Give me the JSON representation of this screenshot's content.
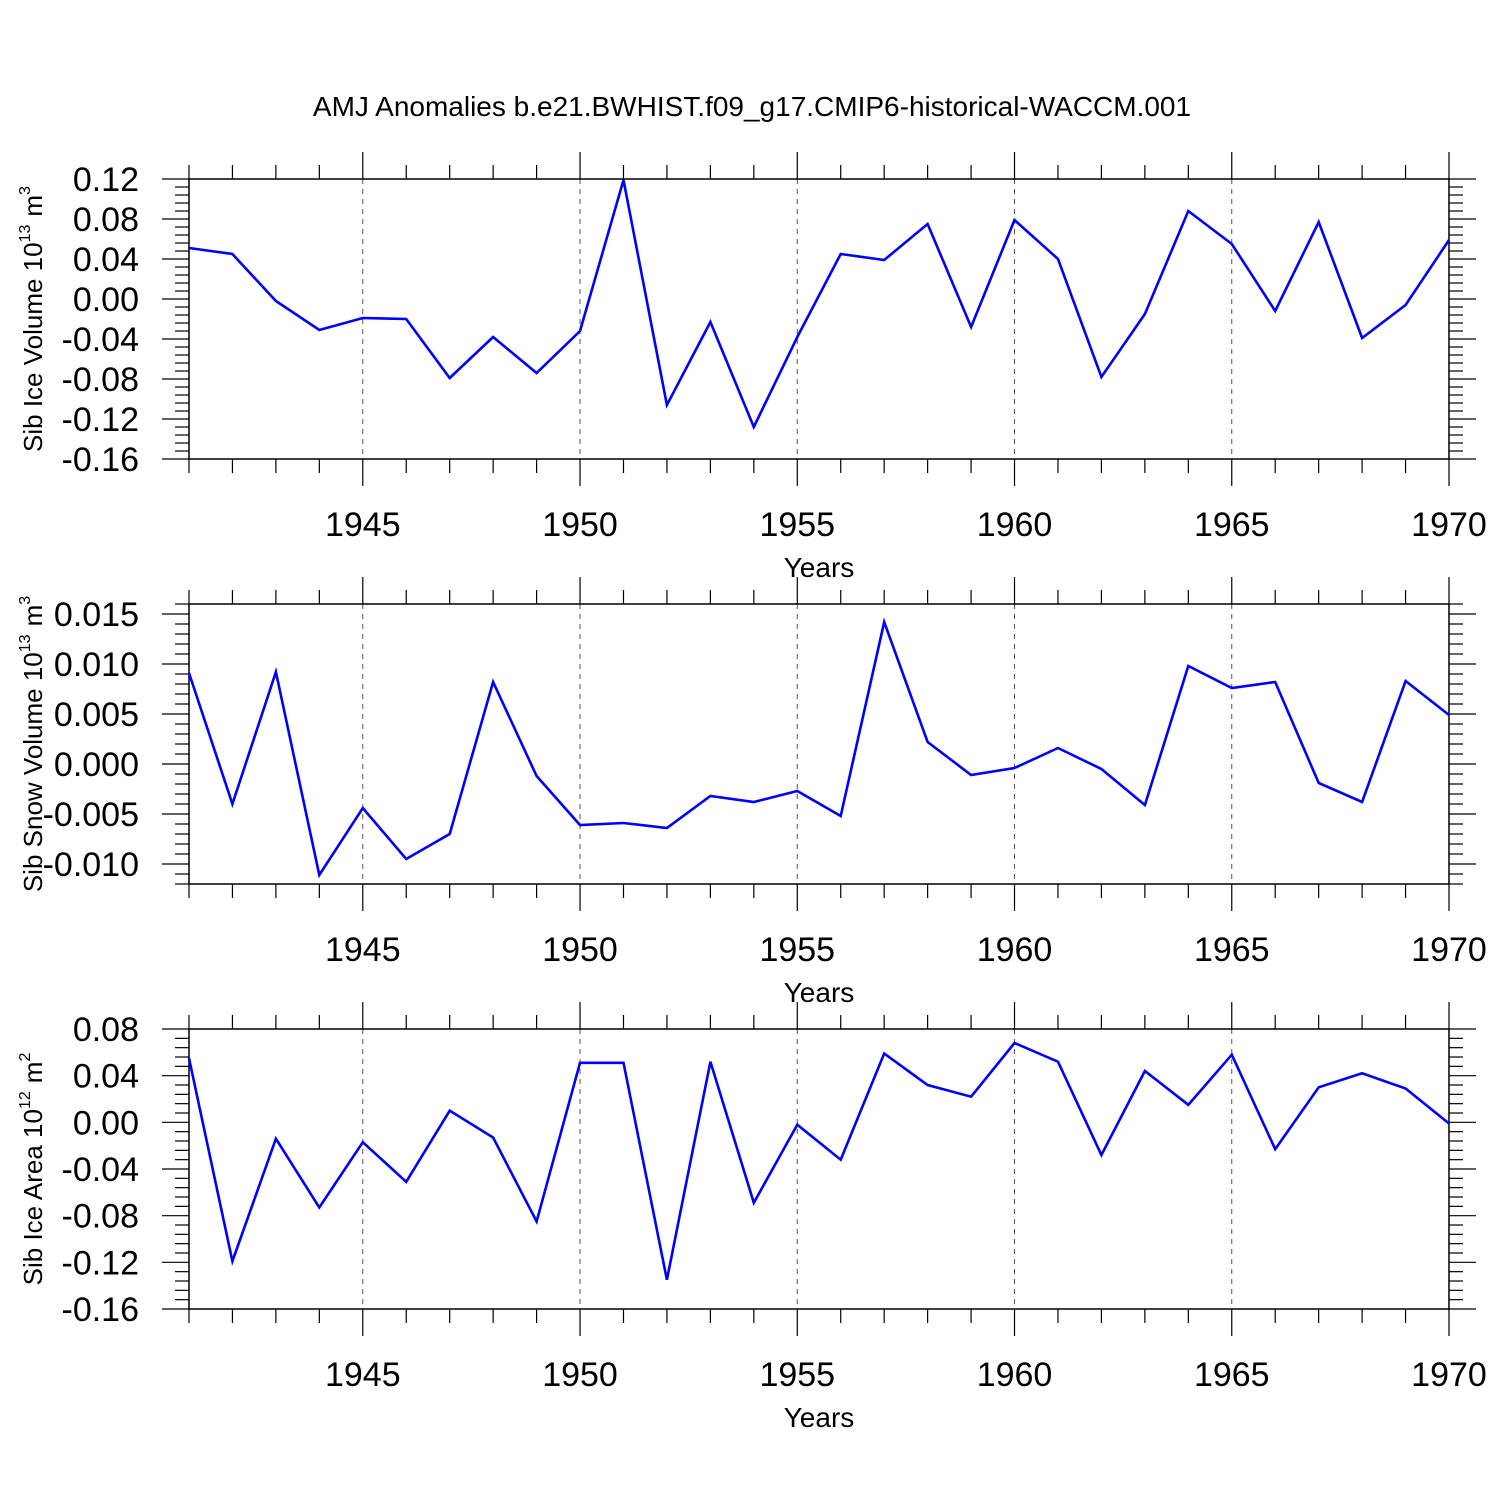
{
  "title": "AMJ Anomalies b.e21.BWHIST.f09_g17.CMIP6-historical-WACCM.001",
  "colors": {
    "line": "#0000ff",
    "axis": "#000000",
    "grid": "#555555"
  },
  "chart_data": [
    {
      "type": "line",
      "name": "sib-ice-volume",
      "xlabel": "Years",
      "ylabel": {
        "text": "Sib Ice Volume 10",
        "exponent": "13",
        "unit": "m",
        "unit_exponent": "3"
      },
      "xlim": [
        1941,
        1970
      ],
      "ylim": [
        -0.16,
        0.12
      ],
      "x_ticks": [
        1945,
        1950,
        1955,
        1960,
        1965,
        1970
      ],
      "x_tick_labels": [
        "1945",
        "1950",
        "1955",
        "1960",
        "1965",
        "1970"
      ],
      "y_ticks": [
        0.12,
        0.08,
        0.04,
        0.0,
        -0.04,
        -0.08,
        -0.12,
        -0.16
      ],
      "y_tick_labels": [
        "0.12",
        "0.08",
        "0.04",
        "0.00",
        "-0.04",
        "-0.08",
        "-0.12",
        "-0.16"
      ],
      "y_minor_step": 0.008,
      "grid": "vertical-dashed-at-major-x",
      "x": [
        1941,
        1942,
        1943,
        1944,
        1945,
        1946,
        1947,
        1948,
        1949,
        1950,
        1951,
        1952,
        1953,
        1954,
        1955,
        1956,
        1957,
        1958,
        1959,
        1960,
        1961,
        1962,
        1963,
        1964,
        1965,
        1966,
        1967,
        1968,
        1969,
        1970
      ],
      "values": [
        0.051,
        0.045,
        -0.002,
        -0.031,
        -0.019,
        -0.02,
        -0.079,
        -0.038,
        -0.074,
        -0.032,
        0.119,
        -0.106,
        -0.023,
        -0.128,
        -0.038,
        0.045,
        0.039,
        0.075,
        -0.028,
        0.079,
        0.04,
        -0.078,
        -0.015,
        0.088,
        0.055,
        -0.012,
        0.077,
        -0.039,
        -0.006,
        0.059
      ]
    },
    {
      "type": "line",
      "name": "sib-snow-volume",
      "xlabel": "Years",
      "ylabel": {
        "text": "Sib Snow Volume 10",
        "exponent": "13",
        "unit": "m",
        "unit_exponent": "3"
      },
      "xlim": [
        1941,
        1970
      ],
      "ylim": [
        -0.012,
        0.016
      ],
      "x_ticks": [
        1945,
        1950,
        1955,
        1960,
        1965,
        1970
      ],
      "x_tick_labels": [
        "1945",
        "1950",
        "1955",
        "1960",
        "1965",
        "1970"
      ],
      "y_ticks": [
        0.015,
        0.01,
        0.005,
        0.0,
        -0.005,
        -0.01
      ],
      "y_tick_labels": [
        "0.015",
        "0.010",
        "0.005",
        "0.000",
        "-0.005",
        "-0.010"
      ],
      "y_minor_step": 0.001,
      "grid": "vertical-dashed-at-major-x",
      "x": [
        1941,
        1942,
        1943,
        1944,
        1945,
        1946,
        1947,
        1948,
        1949,
        1950,
        1951,
        1952,
        1953,
        1954,
        1955,
        1956,
        1957,
        1958,
        1959,
        1960,
        1961,
        1962,
        1963,
        1964,
        1965,
        1966,
        1967,
        1968,
        1969,
        1970
      ],
      "values": [
        0.0091,
        -0.004,
        0.0092,
        -0.0111,
        -0.0044,
        -0.0095,
        -0.007,
        0.0082,
        -0.0012,
        -0.0061,
        -0.0059,
        -0.0064,
        -0.0032,
        -0.0038,
        -0.0027,
        -0.0052,
        0.0142,
        0.0022,
        -0.0011,
        -0.0004,
        0.0016,
        -0.0005,
        -0.0041,
        0.0098,
        0.0076,
        0.0082,
        -0.0019,
        -0.0038,
        0.0083,
        0.0049
      ]
    },
    {
      "type": "line",
      "name": "sib-ice-area",
      "xlabel": "Years",
      "ylabel": {
        "text": "Sib Ice Area 10",
        "exponent": "12",
        "unit": "m",
        "unit_exponent": "2"
      },
      "xlim": [
        1941,
        1970
      ],
      "ylim": [
        -0.16,
        0.08
      ],
      "x_ticks": [
        1945,
        1950,
        1955,
        1960,
        1965,
        1970
      ],
      "x_tick_labels": [
        "1945",
        "1950",
        "1955",
        "1960",
        "1965",
        "1970"
      ],
      "y_ticks": [
        0.08,
        0.04,
        0.0,
        -0.04,
        -0.08,
        -0.12,
        -0.16
      ],
      "y_tick_labels": [
        "0.08",
        "0.04",
        "0.00",
        "-0.04",
        "-0.08",
        "-0.12",
        "-0.16"
      ],
      "y_minor_step": 0.008,
      "grid": "vertical-dashed-at-major-x",
      "x": [
        1941,
        1942,
        1943,
        1944,
        1945,
        1946,
        1947,
        1948,
        1949,
        1950,
        1951,
        1952,
        1953,
        1954,
        1955,
        1956,
        1957,
        1958,
        1959,
        1960,
        1961,
        1962,
        1963,
        1964,
        1965,
        1966,
        1967,
        1968,
        1969,
        1970
      ],
      "values": [
        0.055,
        -0.119,
        -0.014,
        -0.073,
        -0.017,
        -0.051,
        0.01,
        -0.013,
        -0.085,
        0.051,
        0.051,
        -0.135,
        0.052,
        -0.069,
        -0.002,
        -0.032,
        0.059,
        0.032,
        0.022,
        0.068,
        0.052,
        -0.028,
        0.044,
        0.015,
        0.058,
        -0.023,
        0.03,
        0.042,
        0.029,
        -0.001
      ]
    }
  ]
}
